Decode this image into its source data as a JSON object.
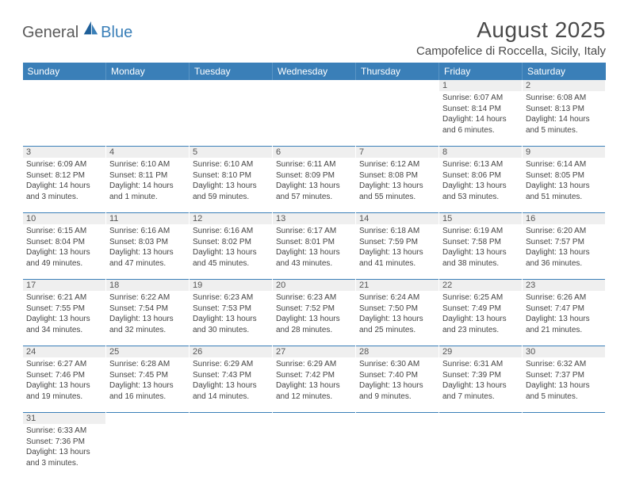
{
  "brand": {
    "general": "General",
    "blue": "Blue"
  },
  "title": "August 2025",
  "subtitle": "Campofelice di Roccella, Sicily, Italy",
  "weekdays": [
    "Sunday",
    "Monday",
    "Tuesday",
    "Wednesday",
    "Thursday",
    "Friday",
    "Saturday"
  ],
  "colors": {
    "header_bg": "#3a7fb8",
    "header_text": "#ffffff",
    "daynum_bg": "#efefef",
    "text": "#444444",
    "rule": "#3a7fb8"
  },
  "days": {
    "1": {
      "sunrise": "6:07 AM",
      "sunset": "8:14 PM",
      "daylight": "14 hours and 6 minutes."
    },
    "2": {
      "sunrise": "6:08 AM",
      "sunset": "8:13 PM",
      "daylight": "14 hours and 5 minutes."
    },
    "3": {
      "sunrise": "6:09 AM",
      "sunset": "8:12 PM",
      "daylight": "14 hours and 3 minutes."
    },
    "4": {
      "sunrise": "6:10 AM",
      "sunset": "8:11 PM",
      "daylight": "14 hours and 1 minute."
    },
    "5": {
      "sunrise": "6:10 AM",
      "sunset": "8:10 PM",
      "daylight": "13 hours and 59 minutes."
    },
    "6": {
      "sunrise": "6:11 AM",
      "sunset": "8:09 PM",
      "daylight": "13 hours and 57 minutes."
    },
    "7": {
      "sunrise": "6:12 AM",
      "sunset": "8:08 PM",
      "daylight": "13 hours and 55 minutes."
    },
    "8": {
      "sunrise": "6:13 AM",
      "sunset": "8:06 PM",
      "daylight": "13 hours and 53 minutes."
    },
    "9": {
      "sunrise": "6:14 AM",
      "sunset": "8:05 PM",
      "daylight": "13 hours and 51 minutes."
    },
    "10": {
      "sunrise": "6:15 AM",
      "sunset": "8:04 PM",
      "daylight": "13 hours and 49 minutes."
    },
    "11": {
      "sunrise": "6:16 AM",
      "sunset": "8:03 PM",
      "daylight": "13 hours and 47 minutes."
    },
    "12": {
      "sunrise": "6:16 AM",
      "sunset": "8:02 PM",
      "daylight": "13 hours and 45 minutes."
    },
    "13": {
      "sunrise": "6:17 AM",
      "sunset": "8:01 PM",
      "daylight": "13 hours and 43 minutes."
    },
    "14": {
      "sunrise": "6:18 AM",
      "sunset": "7:59 PM",
      "daylight": "13 hours and 41 minutes."
    },
    "15": {
      "sunrise": "6:19 AM",
      "sunset": "7:58 PM",
      "daylight": "13 hours and 38 minutes."
    },
    "16": {
      "sunrise": "6:20 AM",
      "sunset": "7:57 PM",
      "daylight": "13 hours and 36 minutes."
    },
    "17": {
      "sunrise": "6:21 AM",
      "sunset": "7:55 PM",
      "daylight": "13 hours and 34 minutes."
    },
    "18": {
      "sunrise": "6:22 AM",
      "sunset": "7:54 PM",
      "daylight": "13 hours and 32 minutes."
    },
    "19": {
      "sunrise": "6:23 AM",
      "sunset": "7:53 PM",
      "daylight": "13 hours and 30 minutes."
    },
    "20": {
      "sunrise": "6:23 AM",
      "sunset": "7:52 PM",
      "daylight": "13 hours and 28 minutes."
    },
    "21": {
      "sunrise": "6:24 AM",
      "sunset": "7:50 PM",
      "daylight": "13 hours and 25 minutes."
    },
    "22": {
      "sunrise": "6:25 AM",
      "sunset": "7:49 PM",
      "daylight": "13 hours and 23 minutes."
    },
    "23": {
      "sunrise": "6:26 AM",
      "sunset": "7:47 PM",
      "daylight": "13 hours and 21 minutes."
    },
    "24": {
      "sunrise": "6:27 AM",
      "sunset": "7:46 PM",
      "daylight": "13 hours and 19 minutes."
    },
    "25": {
      "sunrise": "6:28 AM",
      "sunset": "7:45 PM",
      "daylight": "13 hours and 16 minutes."
    },
    "26": {
      "sunrise": "6:29 AM",
      "sunset": "7:43 PM",
      "daylight": "13 hours and 14 minutes."
    },
    "27": {
      "sunrise": "6:29 AM",
      "sunset": "7:42 PM",
      "daylight": "13 hours and 12 minutes."
    },
    "28": {
      "sunrise": "6:30 AM",
      "sunset": "7:40 PM",
      "daylight": "13 hours and 9 minutes."
    },
    "29": {
      "sunrise": "6:31 AM",
      "sunset": "7:39 PM",
      "daylight": "13 hours and 7 minutes."
    },
    "30": {
      "sunrise": "6:32 AM",
      "sunset": "7:37 PM",
      "daylight": "13 hours and 5 minutes."
    },
    "31": {
      "sunrise": "6:33 AM",
      "sunset": "7:36 PM",
      "daylight": "13 hours and 3 minutes."
    }
  },
  "labels": {
    "sunrise": "Sunrise: ",
    "sunset": "Sunset: ",
    "daylight": "Daylight: "
  },
  "grid": [
    [
      null,
      null,
      null,
      null,
      null,
      "1",
      "2"
    ],
    [
      "3",
      "4",
      "5",
      "6",
      "7",
      "8",
      "9"
    ],
    [
      "10",
      "11",
      "12",
      "13",
      "14",
      "15",
      "16"
    ],
    [
      "17",
      "18",
      "19",
      "20",
      "21",
      "22",
      "23"
    ],
    [
      "24",
      "25",
      "26",
      "27",
      "28",
      "29",
      "30"
    ],
    [
      "31",
      null,
      null,
      null,
      null,
      null,
      null
    ]
  ]
}
